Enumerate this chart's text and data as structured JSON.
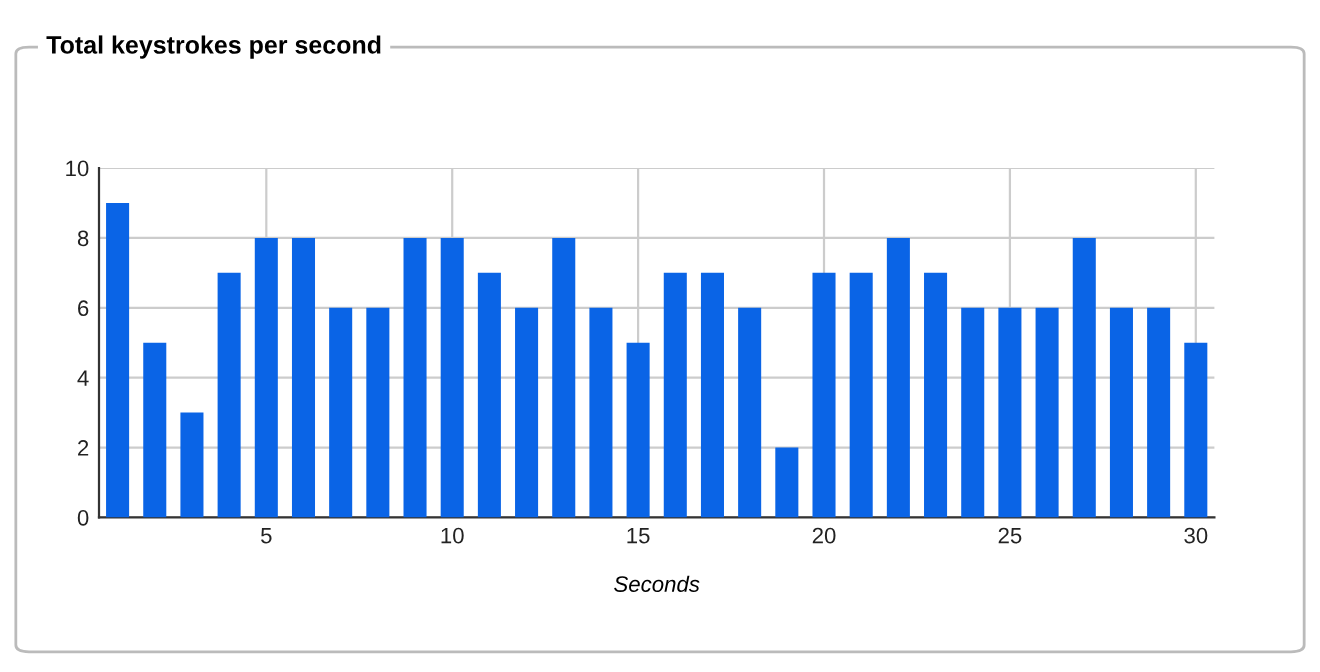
{
  "chart_data": {
    "type": "bar",
    "title": "Total keystrokes per second",
    "xlabel": "Seconds",
    "x": [
      1,
      2,
      3,
      4,
      5,
      6,
      7,
      8,
      9,
      10,
      11,
      12,
      13,
      14,
      15,
      16,
      17,
      18,
      19,
      20,
      21,
      22,
      23,
      24,
      25,
      26,
      27,
      28,
      29,
      30
    ],
    "values": [
      9,
      5,
      3,
      7,
      8,
      8,
      6,
      6,
      8,
      8,
      7,
      6,
      8,
      6,
      5,
      7,
      7,
      6,
      2,
      7,
      7,
      8,
      7,
      6,
      6,
      6,
      8,
      6,
      6,
      5
    ],
    "color": "#0a64e6",
    "xlim": [
      0.5,
      30.5
    ],
    "xticks": [
      5,
      10,
      15,
      20,
      25,
      30
    ],
    "ylim": [
      0,
      10
    ],
    "yticks": [
      0,
      2,
      4,
      6,
      8,
      10
    ],
    "grid": true,
    "legend": false
  }
}
